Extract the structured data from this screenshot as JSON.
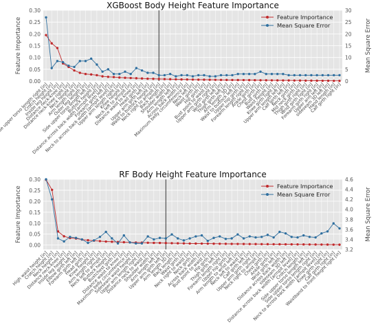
{
  "chart_data": [
    {
      "type": "line",
      "title": "XGBoost Body Height Feature Importance",
      "ylabel": "Feature Importance",
      "ylabel_right": "Mean Square Error",
      "ylim": [
        0,
        0.3
      ],
      "ylim_right": [
        0,
        30
      ],
      "yticks": [
        "0.00",
        "0.05",
        "0.10",
        "0.15",
        "0.20",
        "0.25",
        "0.30"
      ],
      "yticks_right": [
        "0",
        "5",
        "10",
        "15",
        "20",
        "25",
        "30"
      ],
      "grid": true,
      "legend_position": "top-right",
      "vline_index": 20,
      "categories": [
        "Side upper torso length right [in]",
        "Crotch height [in]",
        "Inside leg height [in]",
        "Distance neck-knee [in]",
        "Distance neck-knee right [in]",
        "Neck height [in]",
        "Arm length right [in]",
        "Outer leg length [in]",
        "Side upper torso length left [in]",
        "Buttock height [in]",
        "Distance across back width [armpit level] [in]",
        "Forearm girth left [in]",
        "Neck to across back width [armpit level] [in]",
        "Upper arm length right [in]",
        "Knee height [in]",
        "Neck left to armpit [in]",
        "Distance waist to knee [in]",
        "Head girth [in]",
        "Upper arm girth left [in]",
        "Waist to buttock height [in]",
        "Neck right to armpit [in]",
        "Back length [in]",
        "Shoulder width [in]",
        "Arm length left [in]",
        "Across back width [in]",
        "Maximum belly circumference [in]",
        "Neck left [in]",
        "Waist girth [in]",
        "Hip girth [in]",
        "Bust point to waist [in]",
        "Upper arm girth right [in]",
        "Wrist girth left [in]",
        "Thigh girth left [in]",
        "Arm length 3D [in]",
        "Waist to buttock left [in]",
        "Upper hip girth [in]",
        "Forearm length right [in]",
        "Ankle girth [in]",
        "Chest girth [in]",
        "Bust girth [in]",
        "Waist height [in]",
        "Knee girth right [in]",
        "Upper arm length left [in]",
        "Calf girth left [in]",
        "Neck girth [in]",
        "Mid neck girth [in]",
        "Thigh girth right [in]",
        "Wrist girth right [in]",
        "Forearm girth right [in]",
        "Upper arm left [in]",
        "sideseam 3D left [in]",
        "Hand length [in]",
        "Calf girth right [in]"
      ],
      "series": [
        {
          "name": "Feature Importance",
          "color": "#c0292b",
          "axis": "left",
          "values": [
            0.195,
            0.16,
            0.14,
            0.075,
            0.06,
            0.045,
            0.035,
            0.03,
            0.028,
            0.025,
            0.02,
            0.018,
            0.017,
            0.015,
            0.014,
            0.013,
            0.012,
            0.011,
            0.01,
            0.0095,
            0.009,
            0.0085,
            0.008,
            0.0075,
            0.007,
            0.0068,
            0.0065,
            0.006,
            0.0058,
            0.0055,
            0.0053,
            0.005,
            0.0048,
            0.0046,
            0.0044,
            0.0042,
            0.004,
            0.0038,
            0.0036,
            0.0034,
            0.0032,
            0.003,
            0.0028,
            0.0026,
            0.0024,
            0.0022,
            0.002,
            0.0018,
            0.0016,
            0.0014,
            0.0012,
            0.001,
            0.0008
          ]
        },
        {
          "name": "Mean Square Error",
          "color": "#2f6f9f",
          "axis": "right",
          "values": [
            27,
            5.5,
            8.5,
            8,
            6.5,
            6,
            8.5,
            8.5,
            9.5,
            7,
            4,
            5,
            3,
            3,
            4,
            3,
            5.5,
            4.5,
            3.5,
            3.5,
            2.5,
            2.5,
            3,
            2,
            2.5,
            2.5,
            2,
            2.5,
            2.5,
            2,
            2,
            2.5,
            2.5,
            2.5,
            3,
            3,
            3,
            3,
            4,
            3,
            3,
            3,
            3,
            2.5,
            2.5,
            2.5,
            2.5,
            2.5,
            2.5,
            2.5,
            2.5,
            2.5,
            2.5
          ]
        }
      ]
    },
    {
      "type": "line",
      "title": "RF Body Height Feature Importance",
      "ylabel": "Feature Importance",
      "ylabel_right": "Mean Square Error",
      "ylim": [
        -0.02,
        0.3
      ],
      "ylim_right": [
        3.2,
        4.6
      ],
      "yticks": [
        "0.00",
        "0.05",
        "0.10",
        "0.15",
        "0.20",
        "0.25",
        "0.30"
      ],
      "yticks_right": [
        "3.2",
        "3.4",
        "3.6",
        "3.8",
        "4.0",
        "4.2",
        "4.4",
        "4.6"
      ],
      "grid": true,
      "legend_position": "top-right",
      "vline_index": 20,
      "categories": [
        "High waist height [in]",
        "Crotch height [in]",
        "Neck height [in]",
        "Distance neck-knee [in]",
        "Inside leg height [in]",
        "Elbow girth left [in]",
        "Forearm girth left [in]",
        "Head girth [in]",
        "Knee height [in]",
        "Arm length right [in]",
        "Neck left to armpit [in]",
        "Buttock height [in]",
        "Bustchest girth [in]",
        "Distance waist to knee [in]",
        "Maximum belly circumference [in]",
        "Sideseam waist height [in]",
        "Upper arm length right [in]",
        "Distance neck to waist [in]",
        "Shoulder width [in]",
        "Arm length left [in]",
        "Upper arm girth left [in]",
        "Arm length 3D [in]",
        "Back length [in]",
        "Waist girth [in]",
        "Neck right to waist [in]",
        "Neck girth [in]",
        "Across back width [in]",
        "Bust point to waist [in]",
        "Hip girth [in]",
        "Thigh girth left [in]",
        "Forearm length right [in]",
        "Upper hip girth [in]",
        "Arm length to wrist left [in]",
        "Neck left to waist [in]",
        "Calf girth left [in]",
        "Upper arm girth right [in]",
        "Neck right to armpit [in]",
        "Chest girth [in]",
        "Ankle girth [in]",
        "Wrist girth left [in]",
        "Distance across back width [in]",
        "sideseam 3D left [in]",
        "Distance across back width [armpit level] [in]",
        "Crotch length [in]",
        "Side upper torso length left [in]",
        "Side upper torso length right [in]",
        "Neck to across back width [armpit level] [in]",
        "Knee girth right [in]",
        "Calf girth right [in]",
        "Waistband to front height right [in]"
      ],
      "series": [
        {
          "name": "Feature Importance",
          "color": "#c0292b",
          "axis": "left",
          "values": [
            0.298,
            0.252,
            0.062,
            0.04,
            0.032,
            0.03,
            0.025,
            0.022,
            0.02,
            0.018,
            0.016,
            0.015,
            0.014,
            0.013,
            0.012,
            0.0115,
            0.011,
            0.0105,
            0.01,
            0.0095,
            0.009,
            0.0085,
            0.008,
            0.0075,
            0.007,
            0.0068,
            0.0065,
            0.0062,
            0.006,
            0.0058,
            0.0055,
            0.0052,
            0.005,
            0.0048,
            0.0046,
            0.0044,
            0.0042,
            0.004,
            0.0038,
            0.0036,
            0.0034,
            0.0032,
            0.003,
            0.0028,
            0.0026,
            0.0024,
            0.0022,
            0.002,
            0.0018,
            0.0016
          ]
        },
        {
          "name": "Mean Square Error",
          "color": "#2f6f9f",
          "axis": "right",
          "values": [
            4.6,
            4.2,
            3.42,
            3.36,
            3.45,
            3.43,
            3.4,
            3.33,
            3.38,
            3.45,
            3.55,
            3.42,
            3.32,
            3.48,
            3.34,
            3.32,
            3.32,
            3.46,
            3.4,
            3.43,
            3.42,
            3.5,
            3.42,
            3.38,
            3.42,
            3.46,
            3.48,
            3.37,
            3.43,
            3.46,
            3.41,
            3.42,
            3.5,
            3.42,
            3.46,
            3.44,
            3.45,
            3.49,
            3.44,
            3.55,
            3.52,
            3.45,
            3.44,
            3.48,
            3.45,
            3.44,
            3.52,
            3.56,
            3.72,
            3.62
          ]
        }
      ]
    }
  ]
}
